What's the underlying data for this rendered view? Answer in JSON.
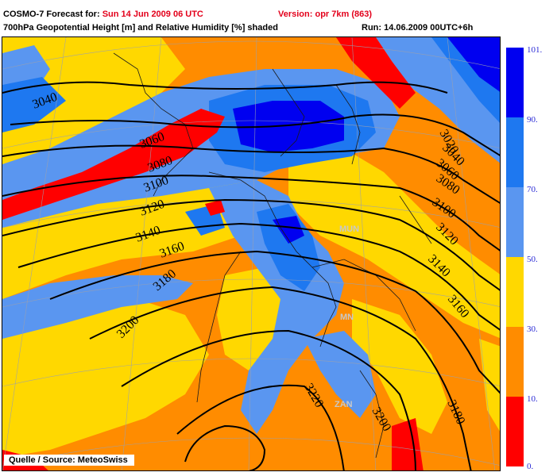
{
  "header": {
    "prefix": "COSMO-7 Forecast for:",
    "forecast_time": "Sun 14 Jun 2009 06 UTC",
    "version_label": "Version:",
    "version_value": "opr 7km (863)",
    "variable_line": "700hPa Geopotential Height [m] and Relative Humidity [%] shaded",
    "run_line": "Run: 14.06.2009 00UTC+6h"
  },
  "source": "Quelle / Source: MeteoSwiss",
  "legend": {
    "items": [
      {
        "label": "101.",
        "color": "#0000f0"
      },
      {
        "label": "90.",
        "color": "#1e78f0"
      },
      {
        "label": "70.",
        "color": "#5a96f0"
      },
      {
        "label": "50.",
        "color": "#ffd800"
      },
      {
        "label": "30.",
        "color": "#ff8c00"
      },
      {
        "label": "10.",
        "color": "#ff0000"
      },
      {
        "label": "0.",
        "color": "#ff0000"
      }
    ]
  },
  "contours": {
    "labels": [
      "3040",
      "3060",
      "3080",
      "3100",
      "3120",
      "3140",
      "3160",
      "3180",
      "3200",
      "3020",
      "3040",
      "3060",
      "3080",
      "3100",
      "3120",
      "3140",
      "3160",
      "3180",
      "3200",
      "3220"
    ]
  },
  "map_marker_labels": [
    "MUN",
    "MN",
    "ZAN"
  ],
  "colors": {
    "very_humid": "#0000f0",
    "humid": "#1e78f0",
    "moist": "#5a96f0",
    "medium": "#ffd800",
    "dry": "#ff8c00",
    "very_dry": "#ff0000"
  }
}
